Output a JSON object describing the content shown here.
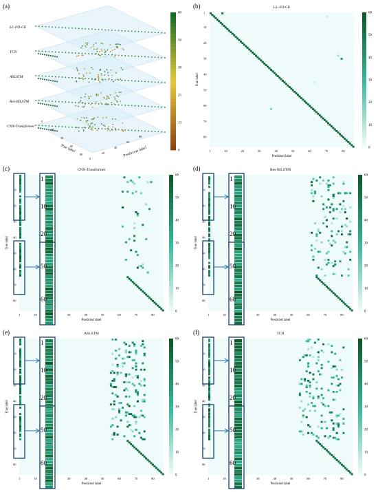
{
  "colors": {
    "cmap_low": "#effbfb",
    "cmap_mid": "#35b89a",
    "cmap_high": "#0b5a28",
    "box_border": "#1f4e79",
    "arrow": "#1f6fae",
    "layer_fill": "#d7ecf8"
  },
  "panel_a": {
    "label": "(a)",
    "layers": [
      "LL-FO-CE",
      "TCN",
      "ASLSTM",
      "Res-BiLSTM",
      "CNN-Transformer"
    ],
    "axis_true": "True label",
    "axis_pred": "Prediction label",
    "true_ticks": [
      "0",
      "20",
      "40",
      "60",
      "80"
    ],
    "pred_ticks": [
      "0",
      "20",
      "40",
      "60",
      "80"
    ],
    "cbar_ticks": [
      "0",
      "13",
      "25",
      "38",
      "50",
      "60"
    ]
  },
  "panel_b": {
    "label": "(b)",
    "title": "LL-FO-CE",
    "xlabel": "Predicted label",
    "ylabel": "True label",
    "ticks": [
      "1",
      "10",
      "20",
      "30",
      "40",
      "50",
      "60",
      "70",
      "80"
    ],
    "cbar_ticks": [
      "0",
      "10",
      "20",
      "30",
      "40",
      "50",
      "60"
    ]
  },
  "panel_c": {
    "label": "(c)",
    "title": "CNN-Transformer",
    "xlabel": "Predicted label",
    "ylabel": "True label",
    "ticks": [
      "1",
      "10",
      "20",
      "30",
      "40",
      "50",
      "60",
      "70",
      "80"
    ],
    "zoom_top_ticks": [
      "1",
      "10",
      "20"
    ],
    "zoom_bottom_ticks": [
      "50",
      "60"
    ],
    "cbar_ticks": [
      "0",
      "10",
      "20",
      "30",
      "40",
      "50",
      "60"
    ]
  },
  "panel_d": {
    "label": "(d)",
    "title": "Res-BiLSTM",
    "xlabel": "Predicted label",
    "ylabel": "True label",
    "ticks": [
      "1",
      "10",
      "20",
      "30",
      "40",
      "50",
      "60",
      "70",
      "80"
    ],
    "zoom_top_ticks": [
      "1",
      "10",
      "20"
    ],
    "zoom_bottom_ticks": [
      "50",
      "60"
    ],
    "cbar_ticks": [
      "0",
      "10",
      "20",
      "30",
      "40",
      "50",
      "60"
    ]
  },
  "panel_e": {
    "label": "(e)",
    "title": "ASLSTM",
    "xlabel": "Predicted label",
    "ylabel": "True label",
    "ticks": [
      "1",
      "10",
      "20",
      "30",
      "40",
      "50",
      "60",
      "70",
      "80"
    ],
    "zoom_top_ticks": [
      "1",
      "10",
      "20"
    ],
    "zoom_bottom_ticks": [
      "50",
      "60"
    ],
    "cbar_ticks": [
      "0",
      "10",
      "20",
      "30",
      "40",
      "50",
      "60"
    ]
  },
  "panel_f": {
    "label": "(f)",
    "title": "TCN",
    "xlabel": "Predicted label",
    "ylabel": "True label",
    "ticks": [
      "1",
      "10",
      "20",
      "30",
      "40",
      "50",
      "60",
      "70",
      "80"
    ],
    "zoom_top_ticks": [
      "1",
      "10",
      "20"
    ],
    "zoom_bottom_ticks": [
      "50",
      "60"
    ],
    "cbar_ticks": [
      "0",
      "10",
      "20",
      "30",
      "40",
      "50",
      "60"
    ]
  },
  "chart_data": [
    {
      "type": "heatmap",
      "panel": "b",
      "title": "LL-FO-CE",
      "xlabel": "Predicted label",
      "ylabel": "True label",
      "n_classes": 86,
      "colorbar_range": [
        0,
        60
      ],
      "diagonal": "all classes correct (~60)",
      "off_diagonal": [
        [
          1,
          8,
          60
        ],
        [
          30,
          79,
          45
        ],
        [
          62,
          37,
          10
        ],
        [
          28,
          77,
          8
        ],
        [
          3,
          70,
          4
        ]
      ]
    },
    {
      "type": "heatmap",
      "panel": "c",
      "title": "CNN-Transformer",
      "xlabel": "Predicted label",
      "ylabel": "True label",
      "n_classes": 86,
      "colorbar_range": [
        0,
        60
      ],
      "diagonal": "classes 65-86 correct; classes 1-64 confused into predicted 1-16 and 65-86",
      "notes": "classes 1-64 mostly predicted as label 1"
    },
    {
      "type": "heatmap",
      "panel": "d",
      "title": "Res-BiLSTM",
      "xlabel": "Predicted label",
      "ylabel": "True label",
      "n_classes": 86,
      "colorbar_range": [
        0,
        60
      ],
      "diagonal": "classes 65-86 correct; classes 1-64 confused into predicted 1-16 and 65-86"
    },
    {
      "type": "heatmap",
      "panel": "e",
      "title": "ASLSTM",
      "xlabel": "Predicted label",
      "ylabel": "True label",
      "n_classes": 86,
      "colorbar_range": [
        0,
        60
      ],
      "diagonal": "classes 65-86 correct; classes 1-64 scattered over predicted 1-16 and 55-75"
    },
    {
      "type": "heatmap",
      "panel": "f",
      "title": "TCN",
      "xlabel": "Predicted label",
      "ylabel": "True label",
      "n_classes": 86,
      "colorbar_range": [
        0,
        60
      ],
      "diagonal": "classes 65-86 correct; classes 1-64 scattered over predicted 1-16 and 55-80"
    }
  ]
}
